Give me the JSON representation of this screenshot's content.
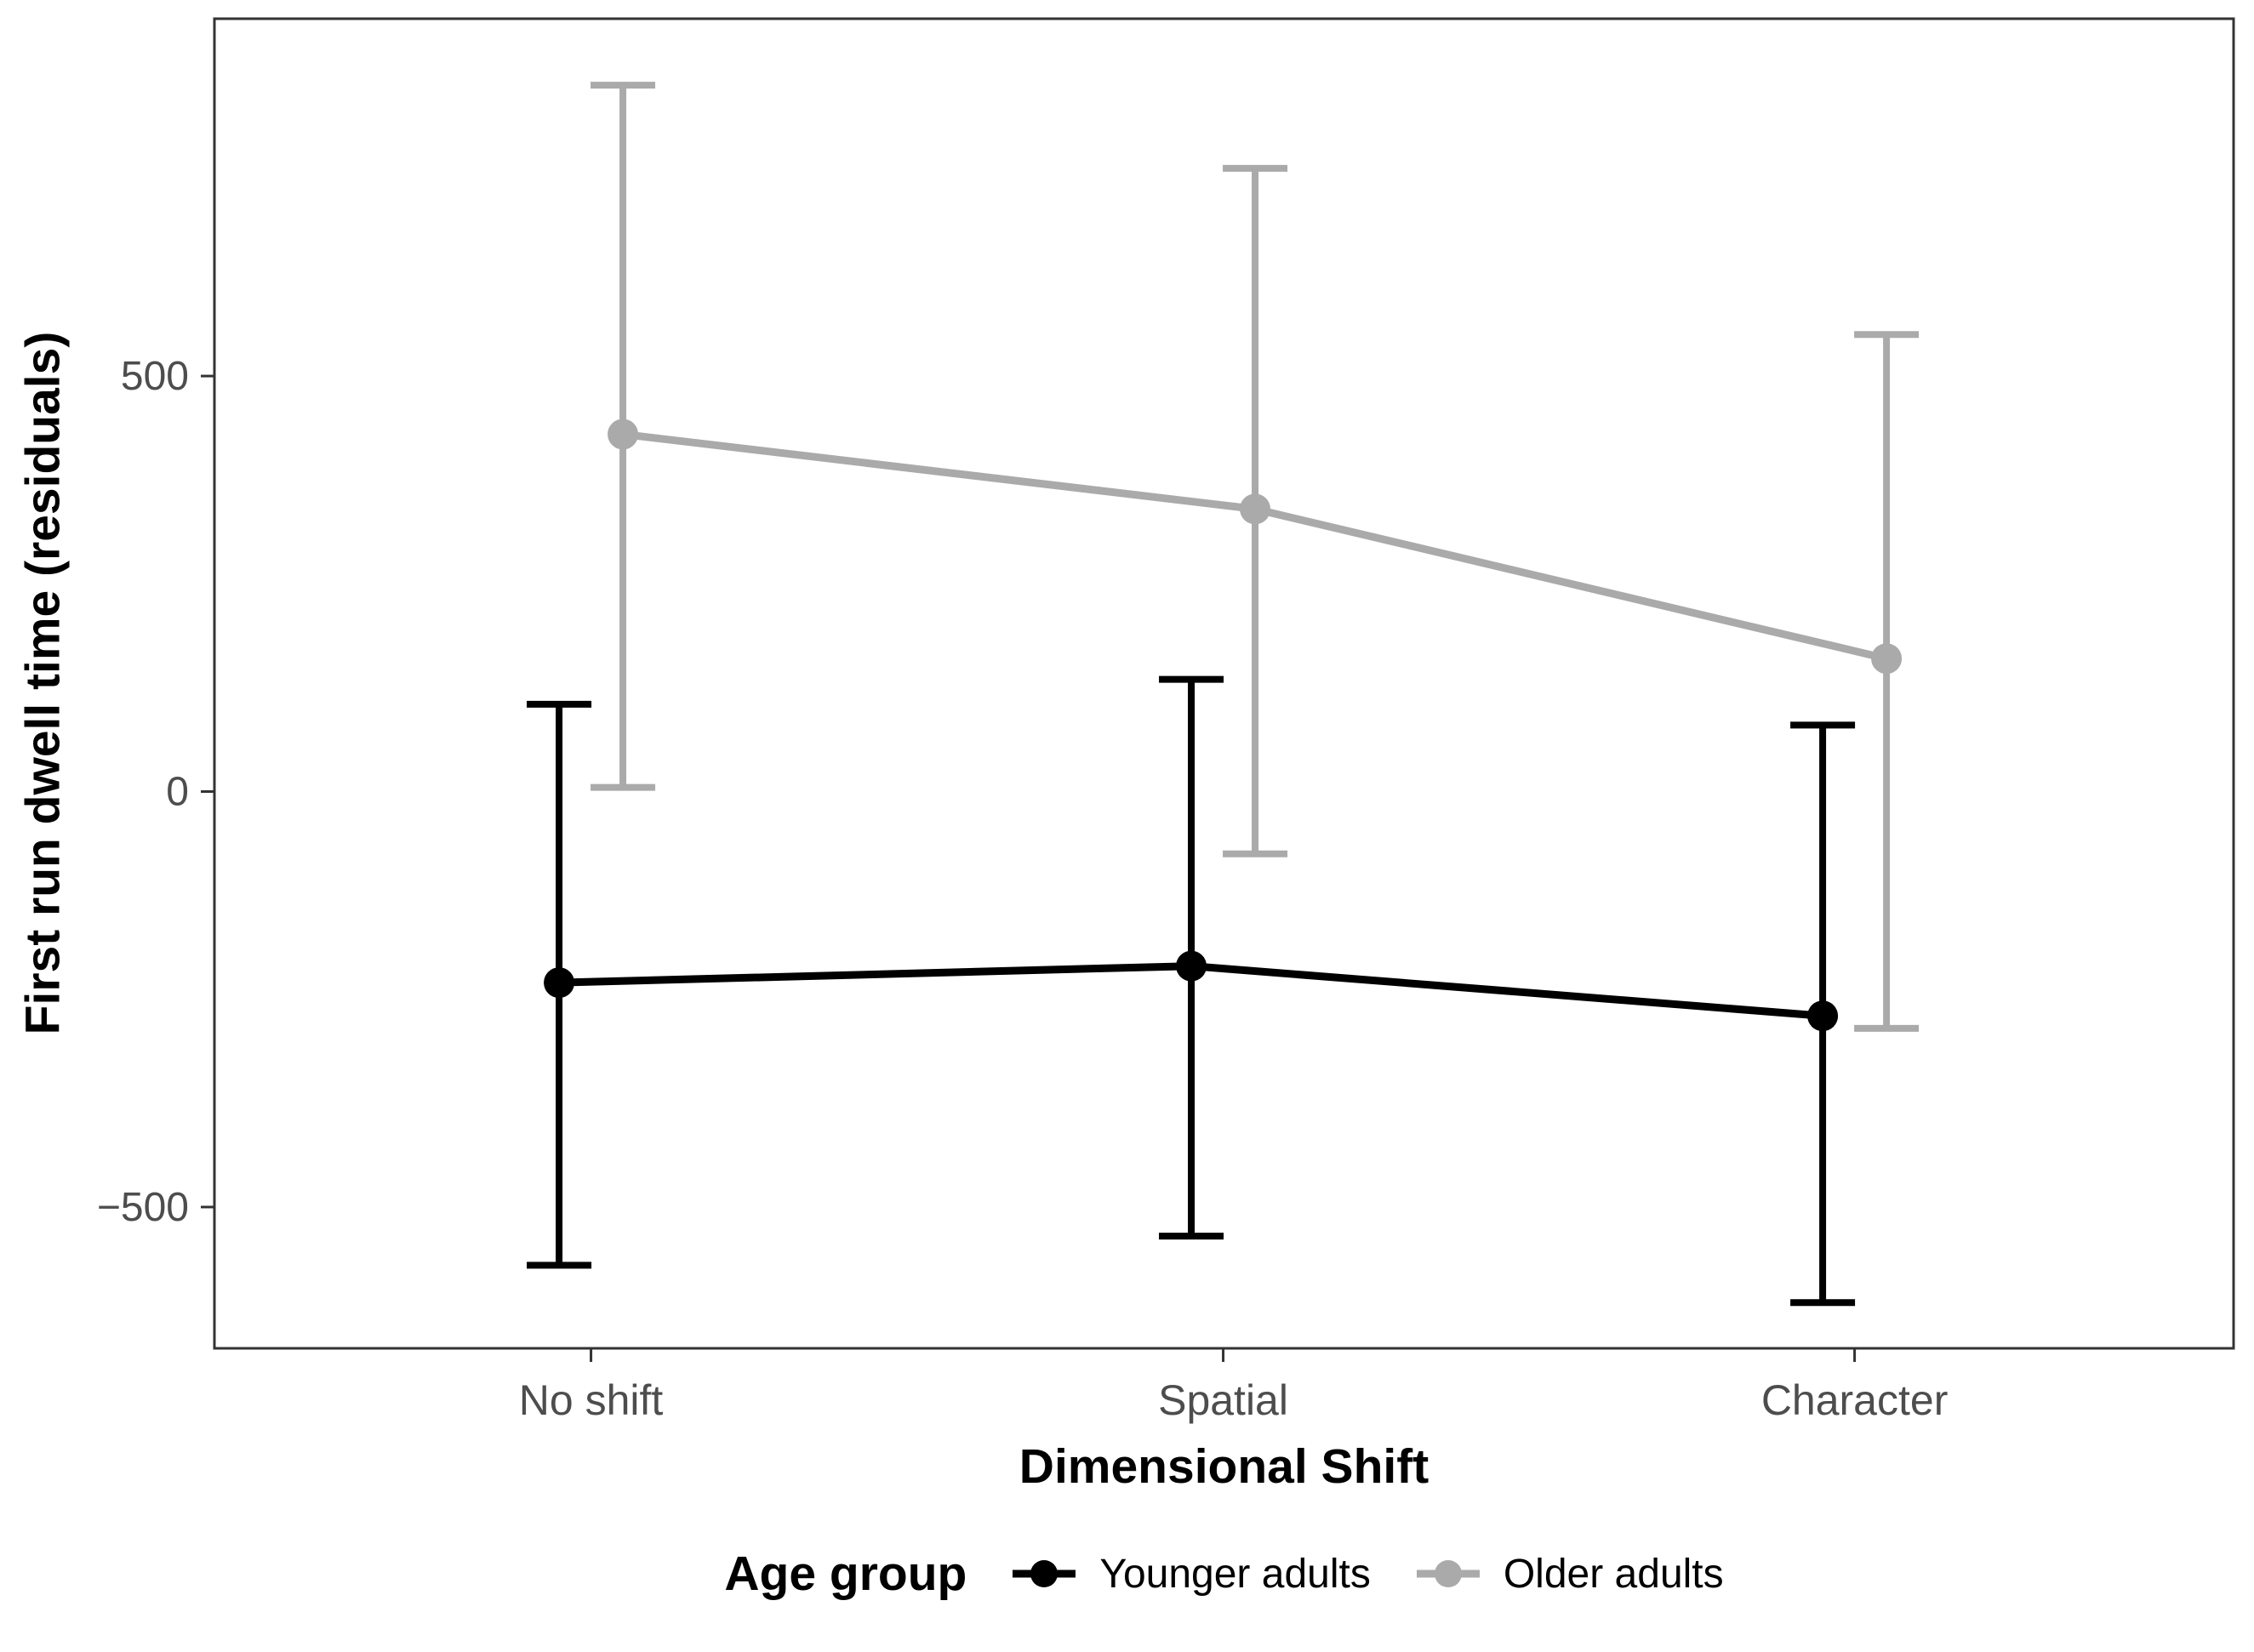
{
  "figure": {
    "y_axis": {
      "title": "First run dwell time (residuals)",
      "tick_labels": [
        "500",
        "0",
        "−500"
      ]
    },
    "x_axis": {
      "title": "Dimensional Shift",
      "categories": [
        "No shift",
        "Spatial",
        "Character"
      ]
    },
    "legend": {
      "title": "Age group",
      "items": [
        {
          "label": "Younger adults",
          "color": "#000000"
        },
        {
          "label": "Older adults",
          "color": "#aaaaaa"
        }
      ]
    }
  },
  "chart_data": {
    "type": "line",
    "title": "",
    "xlabel": "Dimensional Shift",
    "ylabel": "First run dwell time (residuals)",
    "categories": [
      "No shift",
      "Spatial",
      "Character"
    ],
    "yticks": [
      500,
      0,
      -500
    ],
    "ytick_labels": [
      "500",
      "0",
      "−500"
    ],
    "ylim": [
      -670,
      930
    ],
    "grid": false,
    "error_bars": true,
    "legend_title": "Age group",
    "legend_position": "bottom",
    "series": [
      {
        "name": "Younger adults",
        "color": "#000000",
        "values": [
          -230,
          -210,
          -270
        ],
        "ci_low": [
          -570,
          -535,
          -615
        ],
        "ci_high": [
          105,
          135,
          80
        ]
      },
      {
        "name": "Older adults",
        "color": "#aaaaaa",
        "values": [
          430,
          340,
          160
        ],
        "ci_low": [
          5,
          -75,
          -285
        ],
        "ci_high": [
          850,
          750,
          550
        ]
      }
    ]
  }
}
